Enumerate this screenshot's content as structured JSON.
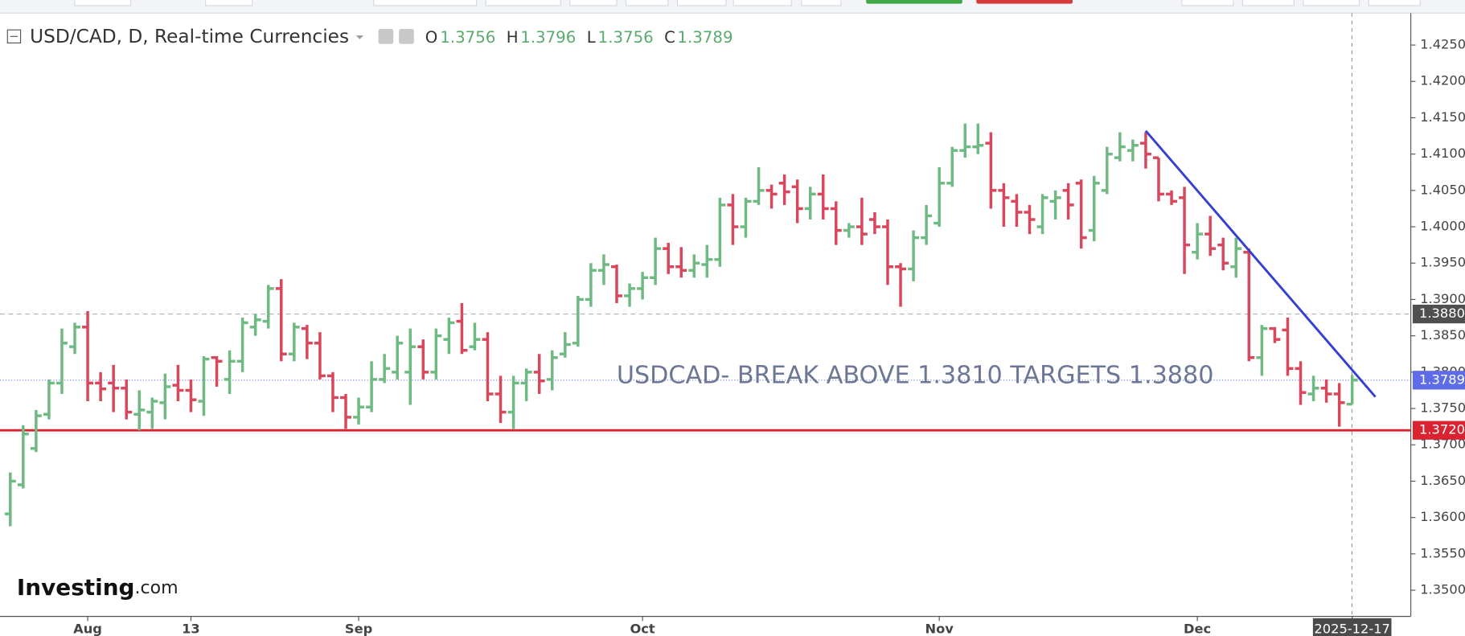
{
  "chart_data": {
    "type": "ohlc",
    "title": "USD/CAD, D, Real-time Currencies",
    "ohlc_readout": [
      {
        "label": "O",
        "value": 1.3756
      },
      {
        "label": "H",
        "value": 1.3796
      },
      {
        "label": "L",
        "value": 1.3756
      },
      {
        "label": "C",
        "value": 1.3789
      }
    ],
    "annotation": "USDCAD- BREAK ABOVE 1.3810 TARGETS 1.3880",
    "watermark": {
      "brand": "Investing",
      "suffix": ".com"
    },
    "up_color": "#6fb982",
    "down_color": "#d8475c",
    "categories": [
      null,
      null,
      null,
      null,
      null,
      null,
      "Aug",
      null,
      null,
      null,
      null,
      null,
      null,
      null,
      "13",
      null,
      null,
      null,
      null,
      null,
      null,
      null,
      null,
      null,
      null,
      null,
      null,
      "Sep",
      null,
      null,
      null,
      null,
      null,
      null,
      null,
      null,
      null,
      null,
      null,
      null,
      null,
      null,
      null,
      null,
      null,
      null,
      null,
      null,
      null,
      "Oct",
      null,
      null,
      null,
      null,
      null,
      null,
      null,
      null,
      null,
      null,
      null,
      null,
      null,
      null,
      null,
      null,
      null,
      null,
      null,
      null,
      null,
      null,
      "Nov",
      null,
      null,
      null,
      null,
      null,
      null,
      null,
      null,
      null,
      null,
      null,
      null,
      null,
      null,
      null,
      null,
      null,
      null,
      null,
      "Dec",
      null,
      null,
      null,
      null,
      null,
      null,
      null,
      null,
      null,
      null,
      null,
      "2025-12-17"
    ],
    "open": [
      1.3605,
      1.3645,
      1.3695,
      1.3742,
      1.3785,
      1.3835,
      1.3862,
      1.3785,
      1.3785,
      1.3778,
      1.3742,
      1.3745,
      1.3758,
      1.3782,
      1.3775,
      1.376,
      1.382,
      1.379,
      1.3815,
      1.3862,
      1.387,
      1.3915,
      1.3825,
      1.386,
      1.384,
      1.3795,
      1.3765,
      1.3738,
      1.3752,
      1.379,
      1.38,
      1.38,
      1.3835,
      1.38,
      1.3845,
      1.387,
      1.3835,
      1.3845,
      1.377,
      1.3745,
      1.3785,
      1.38,
      1.379,
      1.3825,
      1.384,
      1.39,
      1.394,
      1.3945,
      1.3905,
      1.3915,
      1.393,
      1.397,
      1.3945,
      1.394,
      1.3948,
      1.3955,
      1.403,
      1.4,
      1.4035,
      1.405,
      1.406,
      1.4055,
      1.4025,
      1.4045,
      1.4025,
      1.3995,
      1.4,
      1.401,
      1.4,
      1.3945,
      1.3942,
      1.3985,
      1.4005,
      1.406,
      1.4105,
      1.411,
      1.4115,
      1.405,
      1.4035,
      1.402,
      1.4,
      1.4035,
      1.405,
      1.406,
      1.3995,
      1.405,
      1.4095,
      1.4105,
      1.4115,
      1.4095,
      1.4045,
      1.404,
      1.3965,
      1.399,
      1.3975,
      1.3945,
      1.3965,
      1.382,
      1.386,
      1.3858,
      1.3805,
      1.377,
      1.3778,
      1.377,
      1.3756
    ],
    "high": [
      1.3662,
      1.3727,
      1.3748,
      1.379,
      1.386,
      1.3868,
      1.3884,
      1.38,
      1.381,
      1.379,
      1.3775,
      1.3765,
      1.3798,
      1.381,
      1.379,
      1.3822,
      1.3822,
      1.383,
      1.3875,
      1.388,
      1.392,
      1.3928,
      1.3868,
      1.3865,
      1.3855,
      1.38,
      1.377,
      1.3765,
      1.3815,
      1.3825,
      1.385,
      1.386,
      1.3845,
      1.386,
      1.3875,
      1.3895,
      1.3868,
      1.3855,
      1.3795,
      1.3795,
      1.3805,
      1.3825,
      1.383,
      1.3855,
      1.3905,
      1.395,
      1.3962,
      1.3948,
      1.3922,
      1.3938,
      1.3985,
      1.3978,
      1.3972,
      1.3962,
      1.3975,
      1.404,
      1.4045,
      1.404,
      1.4082,
      1.4058,
      1.4072,
      1.4065,
      1.4055,
      1.4072,
      1.4035,
      1.4005,
      1.404,
      1.402,
      1.401,
      1.395,
      1.3995,
      1.403,
      1.4082,
      1.411,
      1.4142,
      1.4142,
      1.413,
      1.406,
      1.4045,
      1.403,
      1.4045,
      1.405,
      1.406,
      1.4065,
      1.407,
      1.411,
      1.413,
      1.412,
      1.413,
      1.4095,
      1.405,
      1.4055,
      1.4005,
      1.4015,
      1.3985,
      1.3985,
      1.397,
      1.3865,
      1.3862,
      1.3875,
      1.3815,
      1.3795,
      1.379,
      1.3785,
      1.3796
    ],
    "low": [
      1.3588,
      1.364,
      1.369,
      1.3735,
      1.377,
      1.3825,
      1.376,
      1.376,
      1.3745,
      1.3735,
      1.372,
      1.3722,
      1.3735,
      1.376,
      1.3745,
      1.374,
      1.378,
      1.377,
      1.38,
      1.385,
      1.386,
      1.3815,
      1.3815,
      1.3818,
      1.379,
      1.3745,
      1.3722,
      1.3728,
      1.3745,
      1.3785,
      1.379,
      1.3755,
      1.379,
      1.379,
      1.3825,
      1.3825,
      1.383,
      1.376,
      1.373,
      1.3722,
      1.376,
      1.377,
      1.3775,
      1.382,
      1.3835,
      1.389,
      1.392,
      1.3895,
      1.389,
      1.39,
      1.392,
      1.3935,
      1.393,
      1.393,
      1.393,
      1.3945,
      1.3975,
      1.3985,
      1.403,
      1.4025,
      1.403,
      1.4005,
      1.401,
      1.401,
      1.3975,
      1.3985,
      1.3975,
      1.399,
      1.392,
      1.389,
      1.3925,
      1.3975,
      1.4,
      1.4055,
      1.4095,
      1.41,
      1.4025,
      1.4,
      1.4,
      1.399,
      1.399,
      1.401,
      1.401,
      1.397,
      1.398,
      1.4045,
      1.409,
      1.409,
      1.408,
      1.4035,
      1.403,
      1.3935,
      1.3955,
      1.396,
      1.394,
      1.393,
      1.3815,
      1.3795,
      1.384,
      1.3795,
      1.3755,
      1.376,
      1.3758,
      1.3725,
      1.3756
    ],
    "close": [
      1.365,
      1.3715,
      1.374,
      1.3785,
      1.384,
      1.3862,
      1.3785,
      1.3777,
      1.3778,
      1.3745,
      1.3748,
      1.376,
      1.378,
      1.3775,
      1.3762,
      1.3818,
      1.3815,
      1.3815,
      1.3868,
      1.3872,
      1.3915,
      1.3825,
      1.3862,
      1.384,
      1.3795,
      1.3765,
      1.3738,
      1.3752,
      1.379,
      1.3805,
      1.384,
      1.3835,
      1.38,
      1.385,
      1.3868,
      1.383,
      1.3845,
      1.377,
      1.3745,
      1.3785,
      1.38,
      1.3788,
      1.382,
      1.3838,
      1.39,
      1.394,
      1.3948,
      1.3905,
      1.3915,
      1.393,
      1.397,
      1.3945,
      1.394,
      1.395,
      1.3955,
      1.403,
      1.4,
      1.4035,
      1.405,
      1.4045,
      1.4048,
      1.4025,
      1.4045,
      1.4025,
      1.3995,
      1.4,
      1.399,
      1.4,
      1.3945,
      1.3942,
      1.3985,
      1.4015,
      1.406,
      1.4105,
      1.411,
      1.4112,
      1.405,
      1.404,
      1.402,
      1.401,
      1.404,
      1.404,
      1.403,
      1.3985,
      1.406,
      1.41,
      1.411,
      1.4112,
      1.41,
      1.4045,
      1.4035,
      1.3975,
      1.399,
      1.397,
      1.395,
      1.397,
      1.382,
      1.386,
      1.3845,
      1.3805,
      1.3772,
      1.3778,
      1.377,
      1.3758,
      1.3789
    ],
    "ylim": [
      1.3464,
      1.4294
    ],
    "yticks": [
      {
        "value": 1.35,
        "label": "1.3500"
      },
      {
        "value": 1.355,
        "label": "1.3550"
      },
      {
        "value": 1.36,
        "label": "1.3600"
      },
      {
        "value": 1.365,
        "label": "1.3650"
      },
      {
        "value": 1.37,
        "label": "1.3700"
      },
      {
        "value": 1.375,
        "label": "1.3750"
      },
      {
        "value": 1.38,
        "label": "1.3800"
      },
      {
        "value": 1.385,
        "label": "1.3850"
      },
      {
        "value": 1.39,
        "label": "1.3900"
      },
      {
        "value": 1.395,
        "label": "1.3950"
      },
      {
        "value": 1.4,
        "label": "1.4000"
      },
      {
        "value": 1.405,
        "label": "1.4050"
      },
      {
        "value": 1.41,
        "label": "1.4100"
      },
      {
        "value": 1.415,
        "label": "1.4150"
      },
      {
        "value": 1.42,
        "label": "1.4200"
      },
      {
        "value": 1.425,
        "label": "1.4250"
      }
    ],
    "levels": [
      {
        "value": 1.388,
        "label": "1.3880",
        "color": "#b0b0b0",
        "tag_color": "#4f4f4f",
        "style": "dashed"
      },
      {
        "value": 1.3789,
        "label": "1.3789",
        "color": "#6a78e6",
        "tag_color": "#5e6ce8",
        "style": "dotted"
      },
      {
        "value": 1.372,
        "label": "1.3720",
        "color": "#d92330",
        "tag_color": "#d92330",
        "style": "solid"
      }
    ],
    "trendline": {
      "color": "#3440d0",
      "x": [
        88,
        105.8
      ],
      "y": [
        1.4132,
        1.3766
      ]
    }
  }
}
